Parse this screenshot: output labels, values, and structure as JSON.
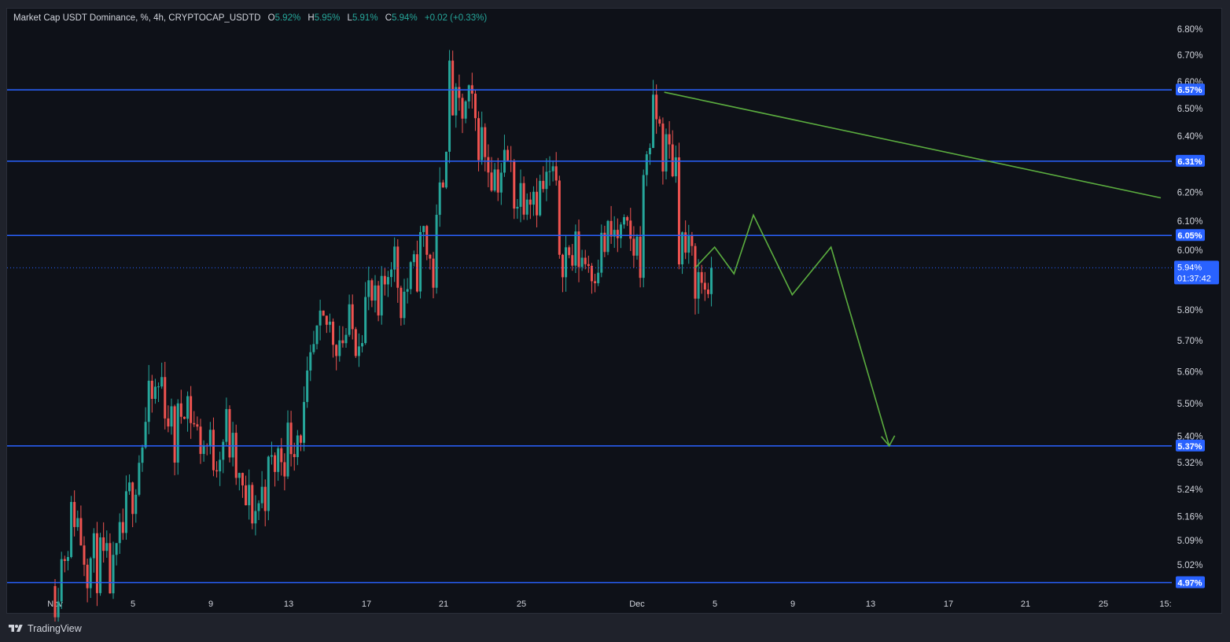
{
  "legend": {
    "title": "Market Cap USDT Dominance, %, 4h, CRYPTOCAP_USDTD",
    "o_label": "O",
    "o_value": "5.92%",
    "h_label": "H",
    "h_value": "5.95%",
    "l_label": "L",
    "l_value": "5.91%",
    "c_label": "C",
    "c_value": "5.94%",
    "change": "+0.02 (+0.33%)"
  },
  "footer": {
    "brand": "TradingView"
  },
  "colors": {
    "up": "#26a69a",
    "down": "#ef5350",
    "level_line": "#2962ff",
    "projection": "#5bad3f",
    "background": "#0e1118",
    "axis_text": "#d1d4dc"
  },
  "chart_data": {
    "type": "candlestick",
    "symbol": "CRYPTOCAP_USDTD",
    "timeframe": "4h",
    "y_scale": "log",
    "y_tick_labels": [
      "6.80%",
      "6.70%",
      "6.60%",
      "6.50%",
      "6.40%",
      "6.20%",
      "6.10%",
      "6.00%",
      "5.80%",
      "5.70%",
      "5.60%",
      "5.50%",
      "5.40%",
      "5.32%",
      "5.24%",
      "5.16%",
      "5.09%",
      "5.02%"
    ],
    "x_tick_labels": [
      "Nov",
      "5",
      "9",
      "13",
      "17",
      "21",
      "25",
      "Dec",
      "5",
      "9",
      "13",
      "17",
      "21",
      "25",
      "15:"
    ],
    "current_price": {
      "label": "5.94%",
      "countdown": "01:37:42"
    },
    "horizontal_levels": [
      {
        "label": "6.57%",
        "value": 6.57
      },
      {
        "label": "6.31%",
        "value": 6.31
      },
      {
        "label": "6.05%",
        "value": 6.05
      },
      {
        "label": "5.37%",
        "value": 5.37
      },
      {
        "label": "4.97%",
        "value": 4.97
      }
    ],
    "trendline": {
      "start": {
        "date": "Dec 2",
        "value": 6.57
      },
      "end": {
        "date": "Dec 28",
        "value": 6.18
      }
    },
    "projection_path": [
      {
        "date": "Dec 4",
        "value": 5.94
      },
      {
        "date": "Dec 5",
        "value": 6.01
      },
      {
        "date": "Dec 6",
        "value": 5.92
      },
      {
        "date": "Dec 7",
        "value": 6.12
      },
      {
        "date": "Dec 9",
        "value": 5.85
      },
      {
        "date": "Dec 11",
        "value": 6.01
      },
      {
        "date": "Dec 14",
        "value": 5.37
      }
    ],
    "anchors": [
      {
        "date": "Nov 1 00:00",
        "value": 4.96
      },
      {
        "date": "Nov 2 00:00",
        "value": 5.18
      },
      {
        "date": "Nov 2 16:00",
        "value": 5.04
      },
      {
        "date": "Nov 3 08:00",
        "value": 5.02
      },
      {
        "date": "Nov 4 00:00",
        "value": 4.97
      },
      {
        "date": "Nov 5 00:00",
        "value": 5.25
      },
      {
        "date": "Nov 5 20:00",
        "value": 5.48
      },
      {
        "date": "Nov 6 12:00",
        "value": 5.57
      },
      {
        "date": "Nov 7 04:00",
        "value": 5.37
      },
      {
        "date": "Nov 7 16:00",
        "value": 5.55
      },
      {
        "date": "Nov 8 08:00",
        "value": 5.4
      },
      {
        "date": "Nov 9 04:00",
        "value": 5.35
      },
      {
        "date": "Nov 9 20:00",
        "value": 5.42
      },
      {
        "date": "Nov 10 16:00",
        "value": 5.2
      },
      {
        "date": "Nov 11 08:00",
        "value": 5.18
      },
      {
        "date": "Nov 12 04:00",
        "value": 5.3
      },
      {
        "date": "Nov 13 04:00",
        "value": 5.4
      },
      {
        "date": "Nov 13 20:00",
        "value": 5.45
      },
      {
        "date": "Nov 14 08:00",
        "value": 5.65
      },
      {
        "date": "Nov 15 00:00",
        "value": 5.75
      },
      {
        "date": "Nov 15 16:00",
        "value": 5.72
      },
      {
        "date": "Nov 16 12:00",
        "value": 5.73
      },
      {
        "date": "Nov 17 04:00",
        "value": 5.85
      },
      {
        "date": "Nov 17 16:00",
        "value": 5.75
      },
      {
        "date": "Nov 18 08:00",
        "value": 6.02
      },
      {
        "date": "Nov 18 20:00",
        "value": 5.85
      },
      {
        "date": "Nov 19 12:00",
        "value": 5.9
      },
      {
        "date": "Nov 20 00:00",
        "value": 6.05
      },
      {
        "date": "Nov 20 12:00",
        "value": 5.92
      },
      {
        "date": "Nov 21 00:00",
        "value": 6.3
      },
      {
        "date": "Nov 21 08:00",
        "value": 6.58
      },
      {
        "date": "Nov 21 16:00",
        "value": 6.47
      },
      {
        "date": "Nov 22 08:00",
        "value": 6.5
      },
      {
        "date": "Nov 23 00:00",
        "value": 6.38
      },
      {
        "date": "Nov 23 16:00",
        "value": 6.27
      },
      {
        "date": "Nov 24 08:00",
        "value": 6.3
      },
      {
        "date": "Nov 24 20:00",
        "value": 6.18
      },
      {
        "date": "Nov 25 08:00",
        "value": 6.25
      },
      {
        "date": "Nov 26 00:00",
        "value": 6.2
      },
      {
        "date": "Nov 26 16:00",
        "value": 6.25
      },
      {
        "date": "Nov 27 00:00",
        "value": 6.03
      },
      {
        "date": "Nov 27 12:00",
        "value": 5.97
      },
      {
        "date": "Nov 28 00:00",
        "value": 5.99
      },
      {
        "date": "Nov 28 16:00",
        "value": 5.96
      },
      {
        "date": "Nov 29 08:00",
        "value": 6.02
      },
      {
        "date": "Nov 29 20:00",
        "value": 6.05
      },
      {
        "date": "Nov 30 12:00",
        "value": 6.02
      },
      {
        "date": "Dec 1 04:00",
        "value": 6.0
      },
      {
        "date": "Dec 1 12:00",
        "value": 6.37
      },
      {
        "date": "Dec 2 00:00",
        "value": 6.48
      },
      {
        "date": "Dec 2 08:00",
        "value": 6.35
      },
      {
        "date": "Dec 3 00:00",
        "value": 6.31
      },
      {
        "date": "Dec 3 04:00",
        "value": 6.05
      },
      {
        "date": "Dec 3 16:00",
        "value": 5.97
      },
      {
        "date": "Dec 4 04:00",
        "value": 5.9
      },
      {
        "date": "Dec 4 12:00",
        "value": 5.88
      },
      {
        "date": "Dec 4 20:00",
        "value": 5.94
      }
    ]
  }
}
